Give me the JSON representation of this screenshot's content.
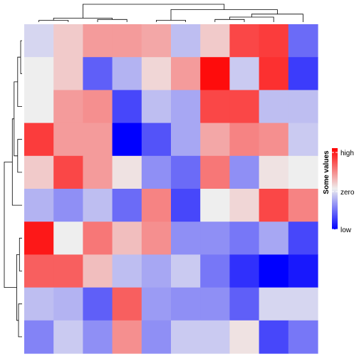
{
  "chart_data": {
    "type": "heatmap",
    "n_rows": 10,
    "n_cols": 10,
    "values": [
      [
        -0.1,
        0.15,
        0.35,
        0.35,
        0.3,
        -0.2,
        0.15,
        0.7,
        0.75,
        -0.55
      ],
      [
        0.0,
        0.15,
        -0.6,
        -0.25,
        0.1,
        0.35,
        0.95,
        -0.15,
        0.8,
        -0.75
      ],
      [
        0.0,
        0.35,
        0.4,
        -0.7,
        -0.2,
        -0.3,
        0.7,
        0.7,
        -0.2,
        -0.2
      ],
      [
        0.75,
        0.35,
        0.35,
        -1.0,
        -0.65,
        -0.3,
        0.3,
        0.45,
        0.4,
        -0.15
      ],
      [
        0.15,
        0.7,
        0.35,
        0.05,
        -0.4,
        -0.55,
        0.5,
        -0.4,
        0.05,
        0.0
      ],
      [
        -0.25,
        -0.4,
        -0.2,
        -0.55,
        0.45,
        -0.7,
        0.0,
        0.1,
        0.7,
        0.45
      ],
      [
        0.9,
        0.0,
        0.5,
        0.2,
        0.4,
        -0.4,
        -0.4,
        -0.5,
        -0.3,
        -0.7
      ],
      [
        0.6,
        0.6,
        0.2,
        -0.2,
        -0.3,
        -0.15,
        -0.5,
        -0.8,
        -1.0,
        -0.9
      ],
      [
        -0.2,
        -0.25,
        -0.6,
        0.6,
        -0.35,
        -0.4,
        -0.4,
        -0.6,
        -0.1,
        -0.1
      ],
      [
        -0.45,
        -0.15,
        -0.4,
        0.4,
        -0.4,
        -0.15,
        -0.15,
        0.05,
        -0.7,
        -0.5
      ]
    ],
    "value_range": [
      -1,
      1
    ],
    "colors": {
      "low": "#0000ff",
      "zero": "#eeeeee",
      "high": "#ff0000",
      "dendrogram": "#000000"
    },
    "legend": {
      "title": "Some values",
      "placement": "right",
      "labels": [
        "high",
        "zero",
        "low"
      ]
    },
    "column_dendrogram": [
      [
        0,
        1,
        0.1
      ],
      [
        2,
        3,
        0.15
      ],
      [
        10,
        11,
        0.22
      ],
      [
        4,
        5,
        0.1
      ],
      [
        6,
        7,
        0.15
      ],
      [
        14,
        8,
        0.28
      ],
      [
        15,
        9,
        0.45
      ],
      [
        13,
        16,
        0.7
      ],
      [
        12,
        17,
        1.0
      ]
    ],
    "row_dendrogram": [
      [
        0,
        1,
        0.08
      ],
      [
        10,
        2,
        0.25
      ],
      [
        3,
        4,
        0.25
      ],
      [
        11,
        12,
        0.45
      ],
      [
        13,
        5,
        0.55
      ],
      [
        6,
        7,
        0.15
      ],
      [
        8,
        9,
        0.2
      ],
      [
        15,
        16,
        0.3
      ],
      [
        14,
        17,
        1.0
      ]
    ]
  }
}
